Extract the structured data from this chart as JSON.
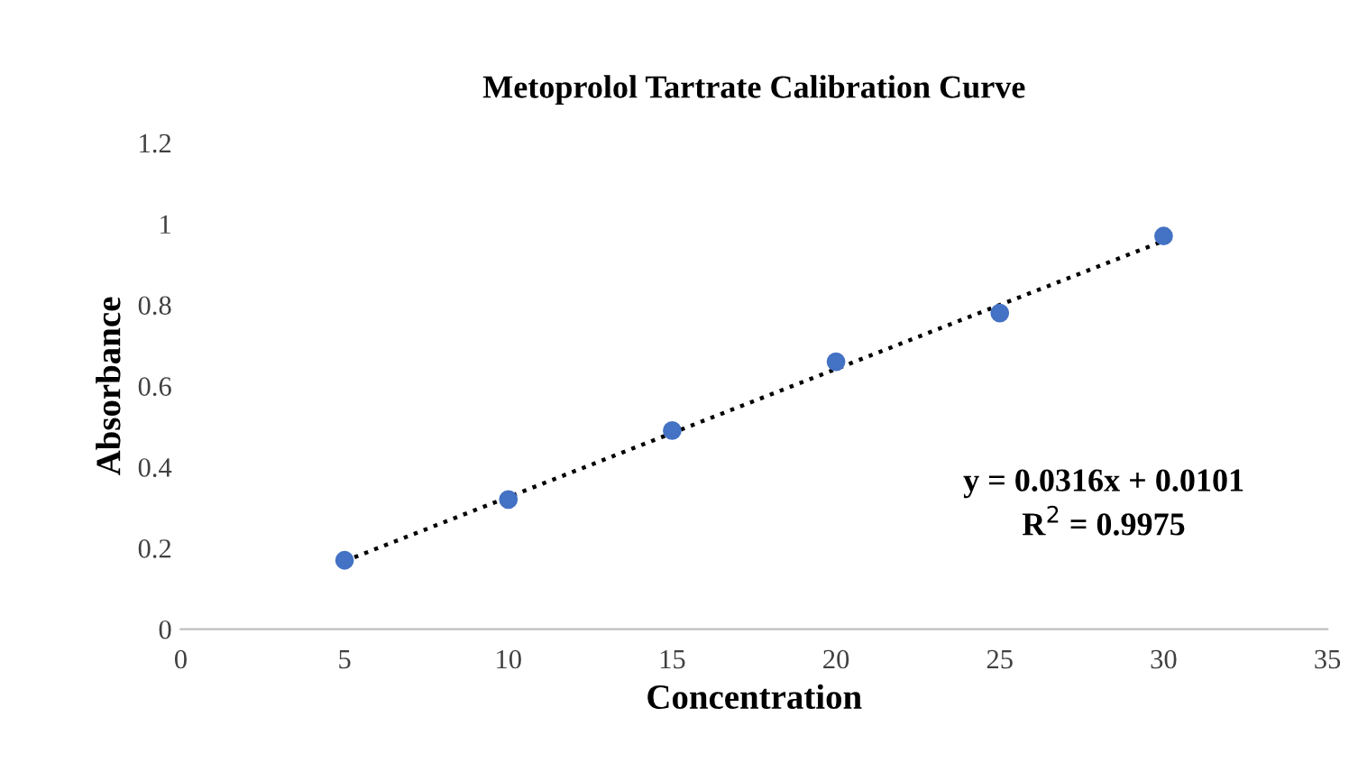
{
  "chart_data": {
    "type": "scatter",
    "title": "Metoprolol Tartrate Calibration Curve",
    "xlabel": "Concentration",
    "ylabel": "Absorbance",
    "x": [
      5,
      10,
      15,
      20,
      25,
      30
    ],
    "series": [
      {
        "color": "#4472c4",
        "marker": "circle",
        "values": [
          0.17,
          0.32,
          0.49,
          0.66,
          0.78,
          0.97
        ]
      },
      {
        "type": "line",
        "color": "#000000",
        "line_style": "dotted",
        "marker": "none",
        "x": [
          5,
          30
        ],
        "values": [
          0.168,
          0.958
        ]
      }
    ],
    "annotations": [
      "y = 0.0316x + 0.0101",
      "R$^{2}$ = 0.9975"
    ],
    "xlim": [
      0,
      35
    ],
    "xticks": [
      0,
      5,
      10,
      15,
      20,
      25,
      30,
      35
    ],
    "ylim": [
      0,
      1.2
    ],
    "yticks": [
      0,
      0.2,
      0.4,
      0.6,
      0.8,
      1,
      1.2
    ],
    "grid": false,
    "legend": false
  }
}
